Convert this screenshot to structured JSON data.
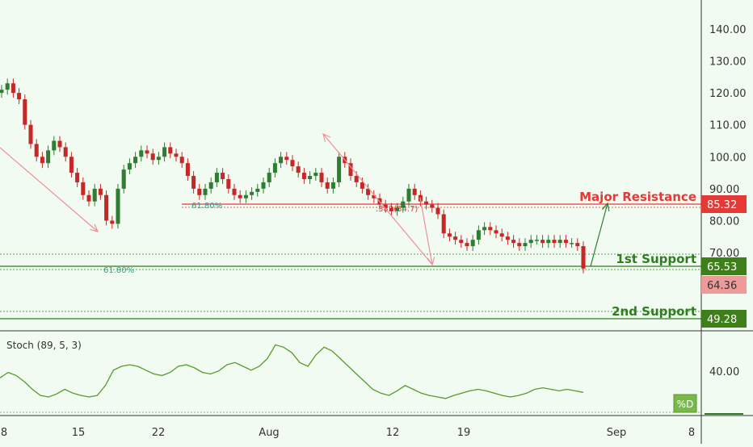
{
  "colors": {
    "background": "#f1fbf1",
    "candle_up": "#2e7d32",
    "candle_down": "#c62828",
    "resistance": "#e53935",
    "support": "#2e7d1e",
    "support_tag": "#3f7f1a",
    "current_tag": "#ef9a9a",
    "fib_text": "#26a69a",
    "arrow_pink": "#ef8f9a",
    "arrow_green": "#2e7d32",
    "stoch_line": "#5a9a2a",
    "grid": "#7aa07a"
  },
  "chart_data": [
    {
      "type": "candlestick",
      "title": "",
      "x_ticks": [
        "8",
        "15",
        "22",
        "Aug",
        "12",
        "19",
        "Sep",
        "8"
      ],
      "y_ticks": [
        "140.00",
        "130.00",
        "120.00",
        "110.00",
        "100.00",
        "90.00",
        "80.00",
        "70.00"
      ],
      "ylim": [
        44,
        150
      ],
      "close_series": [
        121,
        123,
        120,
        118,
        110,
        104,
        100,
        98,
        102,
        105,
        103,
        100,
        95,
        92,
        88,
        86,
        90,
        88,
        80,
        79,
        90,
        96,
        98,
        100,
        102,
        101,
        99,
        100,
        103,
        101,
        100,
        98,
        94,
        90,
        88,
        90,
        92,
        95,
        93,
        90,
        88,
        87,
        88,
        89,
        90,
        92,
        95,
        98,
        100,
        99,
        97,
        95,
        93,
        94,
        95,
        92,
        90,
        92,
        100,
        98,
        94,
        92,
        90,
        88,
        87,
        85,
        84,
        83,
        84,
        86,
        90,
        88,
        86,
        85,
        84,
        82,
        76,
        75,
        74,
        73,
        72,
        74,
        77,
        78,
        77,
        76,
        75,
        74,
        73,
        72,
        73,
        74,
        74,
        73,
        74,
        73,
        74,
        73,
        73,
        72,
        65
      ],
      "levels": [
        {
          "name": "Major Resistance",
          "value": "85.32"
        },
        {
          "name": "1st Support",
          "value": "65.53"
        },
        {
          "name": "2nd Support",
          "value": "49.28"
        }
      ],
      "current_price": "64.36",
      "annotations": [
        "61.80%",
        "61.80%",
        ".382(84.7)"
      ]
    },
    {
      "type": "line",
      "title": "Stoch (89, 5, 3)",
      "y_ticks": [
        "40.00"
      ],
      "legend": [
        "%D"
      ],
      "ylim": [
        0,
        100
      ],
      "series": [
        {
          "name": "%D",
          "values": [
            45,
            52,
            48,
            40,
            30,
            22,
            20,
            24,
            30,
            25,
            22,
            20,
            22,
            35,
            55,
            60,
            62,
            60,
            55,
            50,
            48,
            52,
            60,
            62,
            58,
            52,
            50,
            54,
            62,
            65,
            60,
            55,
            60,
            70,
            88,
            85,
            78,
            65,
            60,
            75,
            85,
            80,
            70,
            60,
            50,
            40,
            30,
            25,
            22,
            28,
            35,
            30,
            25,
            22,
            20,
            18,
            22,
            25,
            28,
            30,
            28,
            25,
            22,
            20,
            22,
            25,
            30,
            32,
            30,
            28,
            30,
            28,
            26
          ]
        }
      ]
    }
  ]
}
